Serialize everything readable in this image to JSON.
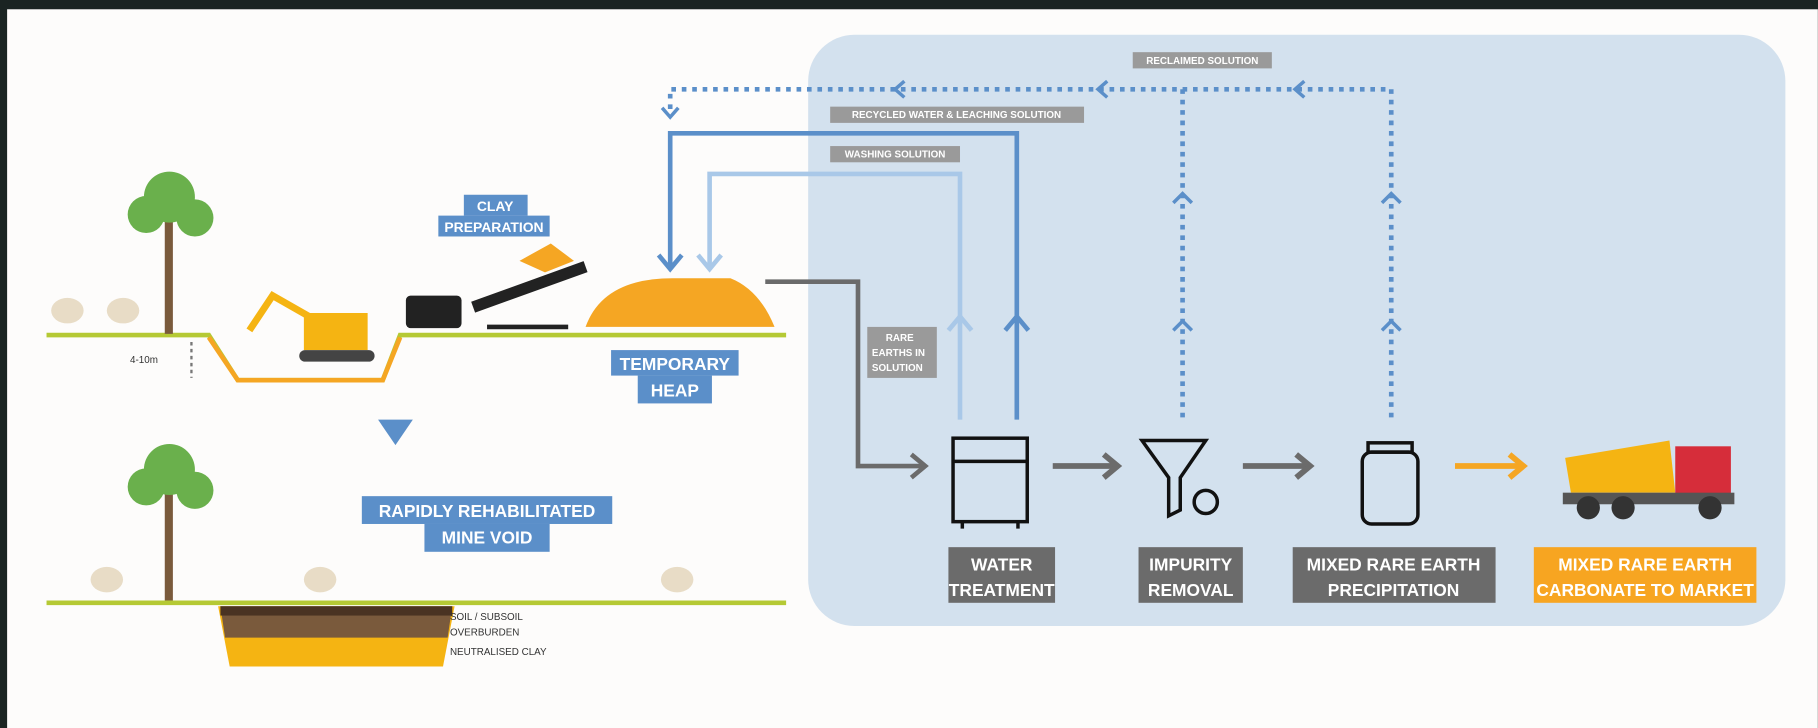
{
  "labels": {
    "clay_preparation": [
      "CLAY",
      "PREPARATION"
    ],
    "temporary_heap": [
      "TEMPORARY",
      "HEAP"
    ],
    "depth": "4-10m",
    "rehabilitated": [
      "RAPIDLY REHABILITATED",
      "MINE VOID"
    ],
    "layers": [
      "SOIL / SUBSOIL",
      "OVERBURDEN",
      "NEUTRALISED CLAY"
    ],
    "reclaimed_solution": "RECLAIMED SOLUTION",
    "recycled_water": "RECYCLED WATER & LEACHING SOLUTION",
    "washing_solution": "WASHING SOLUTION",
    "rare_earths": [
      "RARE",
      "EARTHS IN",
      "SOLUTION"
    ],
    "water_treatment": [
      "WATER",
      "TREATMENT"
    ],
    "impurity_removal": [
      "IMPURITY",
      "REMOVAL"
    ],
    "precipitation": [
      "MIXED RARE EARTH",
      "PRECIPITATION"
    ],
    "to_market": [
      "MIXED RARE EARTH",
      "CARBONATE TO MARKET"
    ]
  }
}
